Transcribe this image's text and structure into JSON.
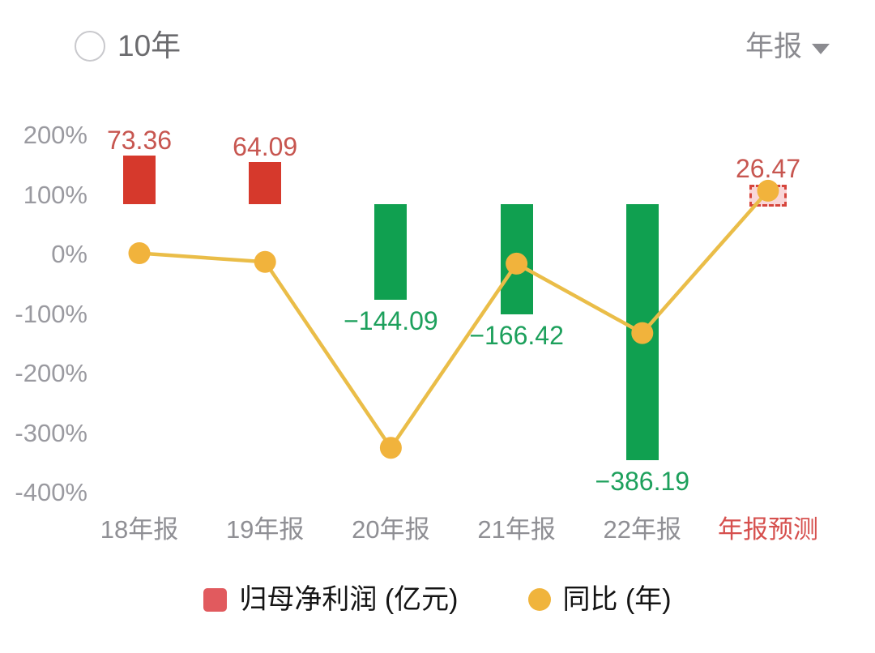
{
  "header": {
    "radio_label": "10年",
    "period_label": "年报"
  },
  "chart_data": {
    "type": "bar+line",
    "categories": [
      "18年报",
      "19年报",
      "20年报",
      "21年报",
      "22年报",
      "年报预测"
    ],
    "series": [
      {
        "name": "归母净利润 (亿元)",
        "type": "bar",
        "values": [
          73.36,
          64.09,
          -144.09,
          -166.42,
          -386.19,
          26.47
        ],
        "value_labels": [
          "73.36",
          "64.09",
          "−144.09",
          "−166.42",
          "−386.19",
          "26.47"
        ],
        "forecast_index": 5
      },
      {
        "name": "同比 (年)",
        "type": "line",
        "unit": "%",
        "values": [
          2,
          -12.6,
          -324.8,
          -15.5,
          -132.1,
          106.9
        ],
        "values_are_estimated_from_plot": true
      }
    ],
    "y_axis": {
      "ticks": [
        "200%",
        "100%",
        "0%",
        "-100%",
        "-200%",
        "-300%",
        "-400%"
      ],
      "min": -400,
      "max": 200,
      "unit": "%"
    },
    "grid": false,
    "legend_position": "bottom"
  },
  "legend": {
    "items": [
      {
        "label": "归母净利润 (亿元)",
        "swatch": "square",
        "color": "#e15a5e"
      },
      {
        "label": "同比 (年)",
        "swatch": "circle",
        "color": "#f0b43c"
      }
    ]
  },
  "colors": {
    "bar_positive": "#d6392c",
    "bar_negative": "#10a050",
    "bar_label_positive": "#c75650",
    "bar_label_negative": "#1da05c",
    "forecast_fill": "#f9d6d8",
    "forecast_border": "#d6453c",
    "line": "#eabd48",
    "dot": "#f1b33c",
    "axis_text": "#9a9aa0",
    "x_label": "#8f8f94",
    "x_label_forecast": "#d6504e"
  }
}
